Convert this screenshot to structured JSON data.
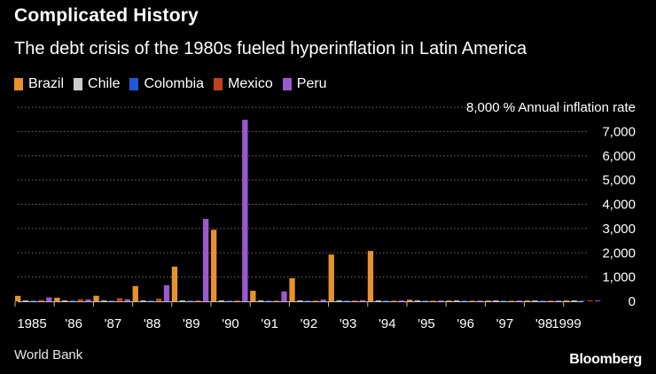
{
  "header": {
    "title": "Complicated History",
    "subtitle": "The debt crisis of the 1980s fueled hyperinflation in Latin America"
  },
  "footer": {
    "source": "World Bank",
    "brand": "Bloomberg"
  },
  "chart_data": {
    "type": "bar",
    "title": "Complicated History",
    "subtitle": "The debt crisis of the 1980s fueled hyperinflation in Latin America",
    "ylabel": "% Annual inflation rate",
    "top_tick_label": "8,000",
    "ylim": [
      0,
      8000
    ],
    "yticks": [
      0,
      1000,
      2000,
      3000,
      4000,
      5000,
      6000,
      7000
    ],
    "grid": true,
    "legend_position": "top-left",
    "categories": [
      "1985",
      "'86",
      "'87",
      "'88",
      "'89",
      "'90",
      "'91",
      "'92",
      "'93",
      "'94",
      "'95",
      "'96",
      "'97",
      "'98",
      "1999"
    ],
    "series": [
      {
        "name": "Brazil",
        "color": "#e8922e",
        "values": [
          226,
          147,
          228,
          629,
          1431,
          2948,
          433,
          952,
          1928,
          2076,
          66,
          16,
          7,
          3,
          5
        ]
      },
      {
        "name": "Chile",
        "color": "#cccccc",
        "values": [
          30,
          20,
          20,
          15,
          17,
          26,
          22,
          15,
          13,
          11,
          8,
          7,
          6,
          5,
          3
        ]
      },
      {
        "name": "Colombia",
        "color": "#1f5bd6",
        "values": [
          24,
          19,
          23,
          28,
          26,
          29,
          30,
          27,
          22,
          23,
          21,
          21,
          19,
          19,
          11
        ]
      },
      {
        "name": "Mexico",
        "color": "#c0421c",
        "values": [
          58,
          86,
          132,
          114,
          20,
          27,
          23,
          16,
          10,
          7,
          35,
          34,
          21,
          16,
          17
        ]
      },
      {
        "name": "Peru",
        "color": "#9b59d0",
        "values": [
          163,
          78,
          86,
          667,
          3399,
          7482,
          409,
          74,
          49,
          24,
          11,
          12,
          9,
          7,
          3
        ]
      }
    ]
  }
}
